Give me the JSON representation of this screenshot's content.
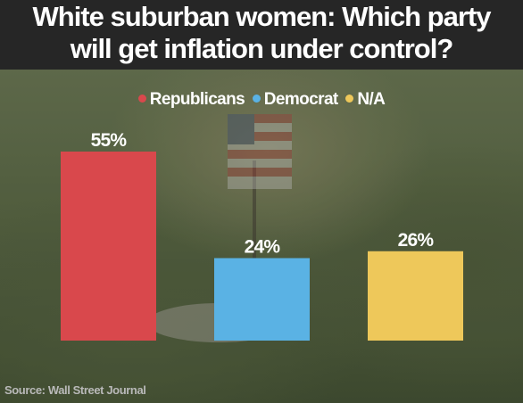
{
  "title": {
    "line1": "White suburban women: Which party",
    "line2": "will get inflation under control?"
  },
  "legend": [
    {
      "label": "Republicans",
      "color": "#d9484c"
    },
    {
      "label": "Democrat",
      "color": "#5ab2e4"
    },
    {
      "label": "N/A",
      "color": "#eec85a"
    }
  ],
  "source": "Source: Wall Street Journal",
  "chart_data": {
    "type": "bar",
    "title": "White suburban women: Which party will get inflation under control?",
    "categories": [
      "Republicans",
      "Democrat",
      "N/A"
    ],
    "values": [
      55,
      24,
      26
    ],
    "value_labels": [
      "55%",
      "24%",
      "26%"
    ],
    "colors": [
      "#d9484c",
      "#5ab2e4",
      "#eec85a"
    ],
    "ylim": [
      0,
      55
    ],
    "grid": false,
    "legend_position": "top-center",
    "xlabel": "",
    "ylabel": ""
  }
}
